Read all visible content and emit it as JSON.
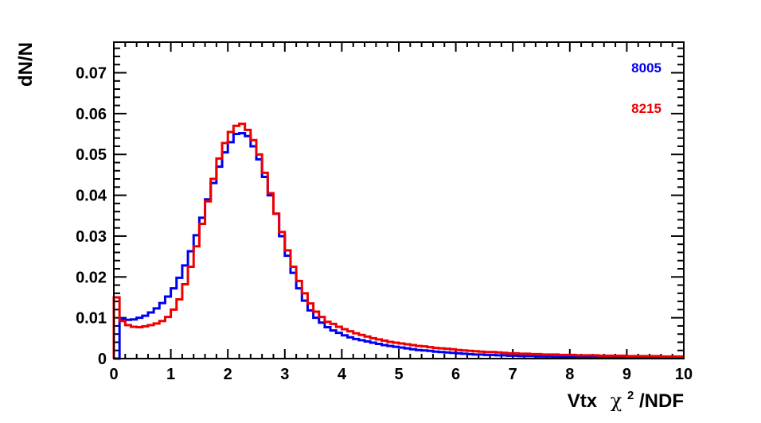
{
  "chart_data": {
    "type": "line",
    "style": "step-histogram",
    "title": "",
    "xlabel": {
      "prefix": "Vtx",
      "symbol": "χ",
      "superscript": "2",
      "suffix": "/NDF"
    },
    "ylabel": "dN/N",
    "xlim": [
      0,
      10
    ],
    "ylim": [
      0,
      0.0775
    ],
    "x_ticks": [
      "0",
      "1",
      "2",
      "3",
      "4",
      "5",
      "6",
      "7",
      "8",
      "9",
      "10"
    ],
    "y_ticks": [
      "0",
      "0.01",
      "0.02",
      "0.03",
      "0.04",
      "0.05",
      "0.06",
      "0.07"
    ],
    "bin_width": 0.1,
    "grid": false,
    "legend_position": "top-right",
    "series": [
      {
        "name": "8005",
        "color": "#0000ee",
        "values": [
          0.0,
          0.0097,
          0.0095,
          0.0096,
          0.01,
          0.0105,
          0.0113,
          0.0123,
          0.0136,
          0.0152,
          0.0172,
          0.0198,
          0.0228,
          0.0263,
          0.0302,
          0.0345,
          0.039,
          0.043,
          0.047,
          0.0505,
          0.053,
          0.055,
          0.0552,
          0.0545,
          0.052,
          0.0488,
          0.0445,
          0.04,
          0.0355,
          0.03,
          0.0252,
          0.021,
          0.0172,
          0.0142,
          0.0118,
          0.01,
          0.0088,
          0.0077,
          0.0069,
          0.0063,
          0.0057,
          0.0052,
          0.0048,
          0.0045,
          0.0042,
          0.0039,
          0.0036,
          0.0033,
          0.0031,
          0.0029,
          0.0027,
          0.0025,
          0.0023,
          0.0021,
          0.002,
          0.0019,
          0.0017,
          0.0016,
          0.0015,
          0.0014,
          0.0013,
          0.0012,
          0.0011,
          0.001,
          0.001,
          0.0009,
          0.0009,
          0.0008,
          0.0008,
          0.0007,
          0.0007,
          0.0006,
          0.0006,
          0.0006,
          0.0005,
          0.0005,
          0.0005,
          0.0004,
          0.0004,
          0.0004,
          0.0004,
          0.0004,
          0.0003,
          0.0003,
          0.0003,
          0.0003,
          0.0003,
          0.0003,
          0.0003,
          0.0002,
          0.0002,
          0.0002,
          0.0002,
          0.0002,
          0.0002,
          0.0002,
          0.0002,
          0.0002,
          0.0002,
          0.0002
        ]
      },
      {
        "name": "8215",
        "color": "#ee0000",
        "values": [
          0.015,
          0.0092,
          0.0082,
          0.0078,
          0.0077,
          0.0079,
          0.0082,
          0.0086,
          0.0092,
          0.0102,
          0.012,
          0.0145,
          0.0182,
          0.0225,
          0.0275,
          0.033,
          0.0385,
          0.044,
          0.049,
          0.0528,
          0.0555,
          0.057,
          0.0575,
          0.056,
          0.0535,
          0.05,
          0.0455,
          0.0405,
          0.0355,
          0.031,
          0.0265,
          0.0225,
          0.019,
          0.016,
          0.0135,
          0.0115,
          0.0102,
          0.009,
          0.0085,
          0.0078,
          0.0072,
          0.0067,
          0.0062,
          0.0058,
          0.0054,
          0.005,
          0.0047,
          0.0044,
          0.0041,
          0.0039,
          0.0037,
          0.0035,
          0.0033,
          0.0031,
          0.003,
          0.0028,
          0.0026,
          0.0025,
          0.0024,
          0.0023,
          0.0021,
          0.002,
          0.0019,
          0.0018,
          0.0017,
          0.0016,
          0.0016,
          0.0015,
          0.0014,
          0.0013,
          0.0013,
          0.0012,
          0.0012,
          0.0011,
          0.0011,
          0.001,
          0.001,
          0.001,
          0.0009,
          0.0009,
          0.0009,
          0.0008,
          0.0008,
          0.0008,
          0.0008,
          0.0007,
          0.0007,
          0.0007,
          0.0007,
          0.0007,
          0.0006,
          0.0006,
          0.0006,
          0.0006,
          0.0006,
          0.0006,
          0.0005,
          0.0005,
          0.0005,
          0.0005
        ]
      }
    ]
  }
}
